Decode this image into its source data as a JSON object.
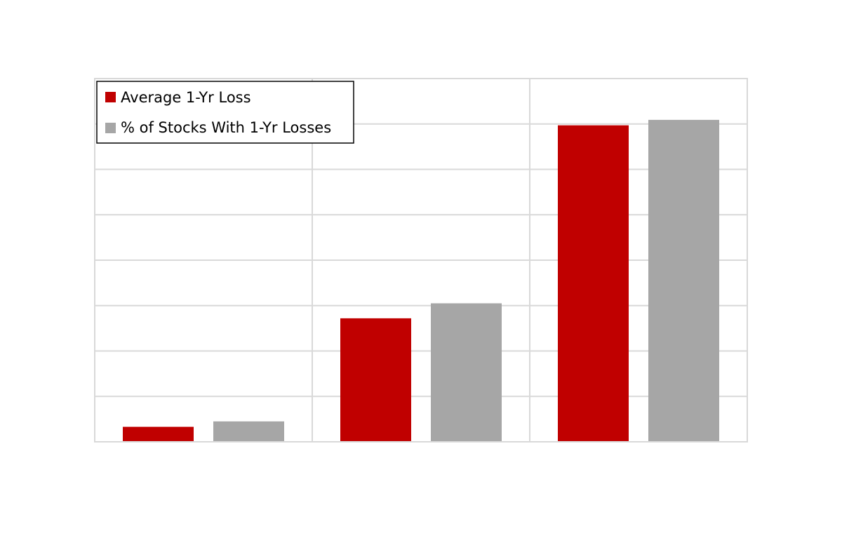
{
  "chart_data": {
    "type": "bar",
    "title": "",
    "xlabel": "",
    "ylabel": "",
    "categories": [
      "",
      "",
      ""
    ],
    "series": [
      {
        "name": "Average 1-Yr Loss",
        "color": "#c00000",
        "values": [
          0.33,
          2.72,
          6.97
        ]
      },
      {
        "name": "% of Stocks With 1-Yr Losses",
        "color": "#a6a6a6",
        "values": [
          0.45,
          3.05,
          7.09
        ]
      }
    ],
    "ylim": [
      0,
      8
    ],
    "y_gridlines": [
      0,
      1,
      2,
      3,
      4,
      5,
      6,
      7,
      8
    ],
    "grid": true,
    "legend_position": "top-left",
    "gridline_color": "#d9d9d9"
  }
}
